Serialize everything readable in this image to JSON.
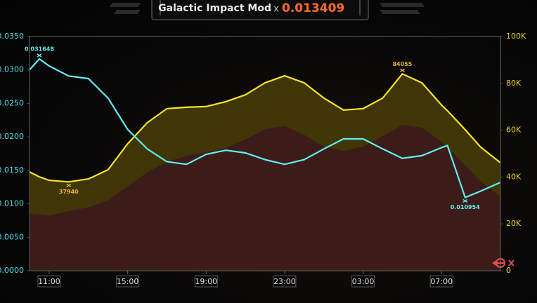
{
  "chart_data": {
    "type": "line",
    "title": "Galactic Impact Mod",
    "multiplier_symbol": "x",
    "multiplier": 0.013409,
    "x": [
      10,
      10.5,
      11,
      12,
      13,
      14,
      15,
      16,
      17,
      18,
      19,
      20,
      21,
      22,
      23,
      24,
      25,
      26,
      27,
      28,
      29,
      30,
      31,
      31.3,
      32.2,
      33,
      34
    ],
    "xlim": [
      10,
      34
    ],
    "xticks": [
      {
        "value": 11,
        "label": "11:00"
      },
      {
        "value": 15,
        "label": "15:00"
      },
      {
        "value": 19,
        "label": "19:00"
      },
      {
        "value": 23,
        "label": "23:00"
      },
      {
        "value": 27,
        "label": "03:00"
      },
      {
        "value": 31,
        "label": "07:00"
      }
    ],
    "ylim": [
      0,
      0.035
    ],
    "yticks": [
      {
        "value": 0,
        "label": "0.0000"
      },
      {
        "value": 0.005,
        "label": "0.0050"
      },
      {
        "value": 0.01,
        "label": "0.0100"
      },
      {
        "value": 0.015,
        "label": "0.0150"
      },
      {
        "value": 0.02,
        "label": "0.0200"
      },
      {
        "value": 0.025,
        "label": "0.0250"
      },
      {
        "value": 0.03,
        "label": "0.0300"
      },
      {
        "value": 0.035,
        "label": "0.0350"
      }
    ],
    "y2lim": [
      0,
      100000
    ],
    "y2ticks": [
      0,
      {
        "value": 20000,
        "label": "20K"
      },
      {
        "value": 40000,
        "label": "40K"
      },
      {
        "value": 60000,
        "label": "60K"
      },
      {
        "value": 80000,
        "label": "80K"
      },
      {
        "value": 100000,
        "label": "100K"
      }
    ],
    "grid": false,
    "series": [
      {
        "kind": "line",
        "color": "#f4e32c",
        "fill": "#4a3d06",
        "axis": "y2",
        "extreme_labels": true,
        "label_color": "#e6b22a",
        "values": [
          42200,
          40100,
          38600,
          37940,
          39200,
          43100,
          54200,
          63200,
          69200,
          69800,
          70100,
          72200,
          75100,
          80200,
          83200,
          80200,
          73700,
          68600,
          69200,
          73700,
          84055,
          80200,
          70700,
          68300,
          60200,
          52700,
          46100
        ]
      },
      {
        "kind": "area",
        "color": "#3c1a1c",
        "axis": "y2",
        "values": [
          24300,
          24000,
          23500,
          25500,
          27000,
          30000,
          36000,
          42000,
          46500,
          49000,
          50500,
          52500,
          56000,
          60500,
          61700,
          58000,
          53000,
          51200,
          53000,
          57500,
          62300,
          61000,
          55000,
          52500,
          45000,
          38000,
          31700
        ]
      },
      {
        "kind": "line",
        "color": "#62eef0",
        "axis": "y",
        "extreme_labels": true,
        "label_color": "#62eef0",
        "values": [
          0.03,
          0.031648,
          0.0306,
          0.0291,
          0.0287,
          0.0258,
          0.0211,
          0.0182,
          0.0163,
          0.0159,
          0.0174,
          0.018,
          0.0176,
          0.0166,
          0.0159,
          0.0166,
          0.0182,
          0.0197,
          0.0197,
          0.0182,
          0.0168,
          0.0172,
          0.0184,
          0.0187,
          0.010954,
          0.0119,
          0.0132
        ]
      }
    ]
  }
}
